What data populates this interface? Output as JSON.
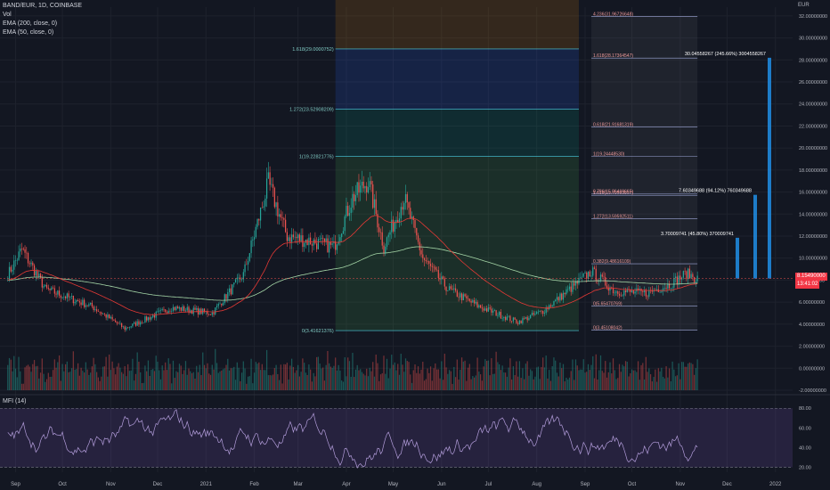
{
  "legend": {
    "symbol": "BAND/EUR, 1D, COINBASE",
    "vol": "Vol",
    "ema200": "EMA (200, close, 0)",
    "ema50": "EMA (50, close, 0)"
  },
  "mfi_label": "MFI (14)",
  "currency_label": "EUR",
  "current_price": "8.15490000",
  "countdown": "13:41:02",
  "colors": {
    "background": "#131722",
    "up": "#26a69a",
    "down": "#ef5350",
    "ema200": "#a5d6a7",
    "ema50": "#e53935",
    "mfi_band": "#7e57c2",
    "projection_bar": "#2196f3"
  },
  "chart_data": {
    "type": "candlestick",
    "xaxis_labels": [
      "Sep",
      "Oct",
      "Nov",
      "Dec",
      "2021",
      "Feb",
      "Mar",
      "Apr",
      "May",
      "Jun",
      "Jul",
      "Aug",
      "Sep",
      "Oct",
      "Nov",
      "Dec",
      "2022"
    ],
    "price_axis_labels": [
      "32.00000000",
      "30.00000000",
      "28.00000000",
      "26.00000000",
      "24.00000000",
      "22.00000000",
      "20.00000000",
      "18.00000000",
      "16.00000000",
      "14.00000000",
      "12.00000000",
      "10.00000000",
      "8.00000000",
      "6.00000000",
      "4.00000000",
      "2.00000000",
      "0.00000000",
      "-2.00000000"
    ],
    "price_range": [
      -2,
      32.8
    ],
    "mfi_axis_labels": [
      "80.00",
      "60.00",
      "40.00",
      "20.00"
    ],
    "mfi_range": [
      15,
      92
    ],
    "mfi_bands": [
      80,
      20
    ],
    "price_anchors": [
      {
        "date": "2020-08-27",
        "price": 8.5
      },
      {
        "date": "2020-09-05",
        "price": 10.8
      },
      {
        "date": "2020-09-20",
        "price": 7.2
      },
      {
        "date": "2020-10-20",
        "price": 5.6
      },
      {
        "date": "2020-11-10",
        "price": 3.6
      },
      {
        "date": "2020-12-10",
        "price": 5.5
      },
      {
        "date": "2021-01-05",
        "price": 5.0
      },
      {
        "date": "2021-01-25",
        "price": 8.5
      },
      {
        "date": "2021-02-10",
        "price": 16.8
      },
      {
        "date": "2021-02-22",
        "price": 12.0
      },
      {
        "date": "2021-03-10",
        "price": 11.5
      },
      {
        "date": "2021-03-24",
        "price": 11.0
      },
      {
        "date": "2021-04-05",
        "price": 15.5
      },
      {
        "date": "2021-04-15",
        "price": 17.0
      },
      {
        "date": "2021-04-25",
        "price": 11.0
      },
      {
        "date": "2021-05-08",
        "price": 15.5
      },
      {
        "date": "2021-05-20",
        "price": 10.0
      },
      {
        "date": "2021-06-05",
        "price": 7.2
      },
      {
        "date": "2021-06-25",
        "price": 5.6
      },
      {
        "date": "2021-07-20",
        "price": 4.2
      },
      {
        "date": "2021-08-05",
        "price": 5.2
      },
      {
        "date": "2021-08-25",
        "price": 7.5
      },
      {
        "date": "2021-09-05",
        "price": 8.8
      },
      {
        "date": "2021-09-20",
        "price": 7.0
      },
      {
        "date": "2021-10-10",
        "price": 6.8
      },
      {
        "date": "2021-10-25",
        "price": 7.6
      },
      {
        "date": "2021-11-05",
        "price": 8.6
      },
      {
        "date": "2021-11-12",
        "price": 8.15
      }
    ],
    "fib_retracement": {
      "levels": [
        {
          "ratio": "0",
          "price": 3.41621376,
          "label": "0(3.41621376)"
        },
        {
          "ratio": "1",
          "price": 19.22821776,
          "label": "1(19.22821776)"
        },
        {
          "ratio": "1.272",
          "price": 23.52908209,
          "label": "1.272(23.52908209)"
        },
        {
          "ratio": "1.618",
          "price": 29.0000752,
          "label": "1.618(29.0000752)"
        }
      ],
      "start": "2021-03-25",
      "end": "2021-08-28"
    },
    "fib_extension": {
      "levels": [
        {
          "label": "0(3.45108042)",
          "price": 3.45108042
        },
        {
          "label": "0.382(9.48616109)",
          "price": 9.48616109
        },
        {
          "label": "0(5.65470769)",
          "price": 5.65470769
        },
        {
          "label": "1(19.24448530)",
          "price": 19.2444853
        },
        {
          "label": "1.272(13.59592511)",
          "price": 13.59592511
        },
        {
          "label": "1.618(15.70569897)",
          "price": 15.70569897
        },
        {
          "label": "0.786(15.86469665)",
          "price": 15.86469665
        },
        {
          "label": "0.618(21.91681319)",
          "price": 21.91681319
        },
        {
          "label": "1.618(28.17364547)",
          "price": 28.17364547
        },
        {
          "label": "4.236(31.96726648)",
          "price": 31.96726648
        }
      ],
      "start": "2021-09-05",
      "end": "2021-11-12"
    },
    "projections": [
      {
        "label": "3.70009741 (45.80%) 370009741",
        "price": 11.85
      },
      {
        "label": "7.60349688 (94.12%) 760349688",
        "price": 15.75
      },
      {
        "label": "30.04558267 (245.66%) 3004558267",
        "price": 28.2
      }
    ]
  }
}
